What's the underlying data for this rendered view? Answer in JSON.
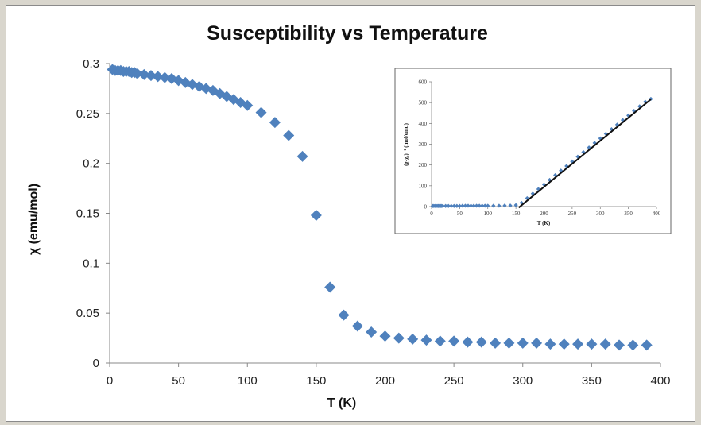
{
  "chart_data": [
    {
      "type": "scatter",
      "title": "Susceptibility vs Temperature",
      "xlabel": "T (K)",
      "ylabel": "χ (emu/mol)",
      "xlim": [
        0,
        400
      ],
      "ylim": [
        0,
        0.3
      ],
      "xticks": [
        0,
        50,
        100,
        150,
        200,
        250,
        300,
        350,
        400
      ],
      "yticks": [
        0,
        0.05,
        0.1,
        0.15,
        0.2,
        0.25,
        0.3
      ],
      "ytick_labels": [
        "0",
        "0.05",
        "0.1",
        "0.15",
        "0.2",
        "0.25",
        "0.3"
      ],
      "marker": "diamond",
      "color": "#4f81bd",
      "grid": false,
      "legend": "none",
      "series": [
        {
          "x": [
            2,
            4,
            6,
            8,
            10,
            12,
            14,
            16,
            18,
            20,
            25,
            30,
            35,
            40,
            45,
            50,
            55,
            60,
            65,
            70,
            75,
            80,
            85,
            90,
            95,
            100,
            110,
            120,
            130,
            140,
            150,
            160,
            170,
            180,
            190,
            200,
            210,
            220,
            230,
            240,
            250,
            260,
            270,
            280,
            290,
            300,
            310,
            320,
            330,
            340,
            350,
            360,
            370,
            380,
            390
          ],
          "y": [
            0.294,
            0.293,
            0.293,
            0.293,
            0.292,
            0.292,
            0.292,
            0.291,
            0.291,
            0.29,
            0.289,
            0.288,
            0.287,
            0.286,
            0.285,
            0.283,
            0.281,
            0.279,
            0.277,
            0.275,
            0.273,
            0.27,
            0.267,
            0.264,
            0.261,
            0.258,
            0.251,
            0.241,
            0.228,
            0.207,
            0.148,
            0.076,
            0.048,
            0.037,
            0.031,
            0.027,
            0.025,
            0.024,
            0.023,
            0.022,
            0.022,
            0.021,
            0.021,
            0.02,
            0.02,
            0.02,
            0.02,
            0.019,
            0.019,
            0.019,
            0.019,
            0.019,
            0.018,
            0.018,
            0.018
          ]
        }
      ]
    },
    {
      "type": "scatter",
      "title": "",
      "xlabel": "T (K)",
      "ylabel": "(χ-χ₀)⁻¹ (mol/emu)",
      "xlim": [
        0,
        400
      ],
      "ylim": [
        0,
        600
      ],
      "xticks": [
        0,
        50,
        100,
        150,
        200,
        250,
        300,
        350,
        400
      ],
      "yticks": [
        0,
        100,
        200,
        300,
        400,
        500,
        600
      ],
      "marker": "diamond",
      "color": "#4f81bd",
      "grid": false,
      "legend": "none",
      "series": [
        {
          "x": [
            2,
            4,
            6,
            8,
            10,
            12,
            14,
            16,
            18,
            20,
            25,
            30,
            35,
            40,
            45,
            50,
            55,
            60,
            65,
            70,
            75,
            80,
            85,
            90,
            95,
            100,
            110,
            120,
            130,
            140,
            150,
            160,
            170,
            180,
            190,
            200,
            210,
            220,
            230,
            240,
            250,
            260,
            270,
            280,
            290,
            300,
            310,
            320,
            330,
            340,
            350,
            360,
            370,
            380,
            390
          ],
          "y": [
            3,
            3,
            3,
            3,
            3,
            3,
            3,
            3,
            3,
            3,
            3,
            3,
            3,
            3,
            3,
            3,
            4,
            4,
            4,
            4,
            4,
            4,
            4,
            4,
            4,
            4,
            4,
            4,
            5,
            5,
            7,
            18,
            40,
            62,
            84,
            106,
            128,
            151,
            173,
            195,
            217,
            240,
            262,
            284,
            306,
            328,
            350,
            372,
            394,
            416,
            438,
            460,
            482,
            504,
            518
          ]
        }
      ],
      "fit_line": {
        "x": [
          155,
          390
        ],
        "y": [
          -5,
          516
        ],
        "color": "#111111"
      }
    }
  ]
}
